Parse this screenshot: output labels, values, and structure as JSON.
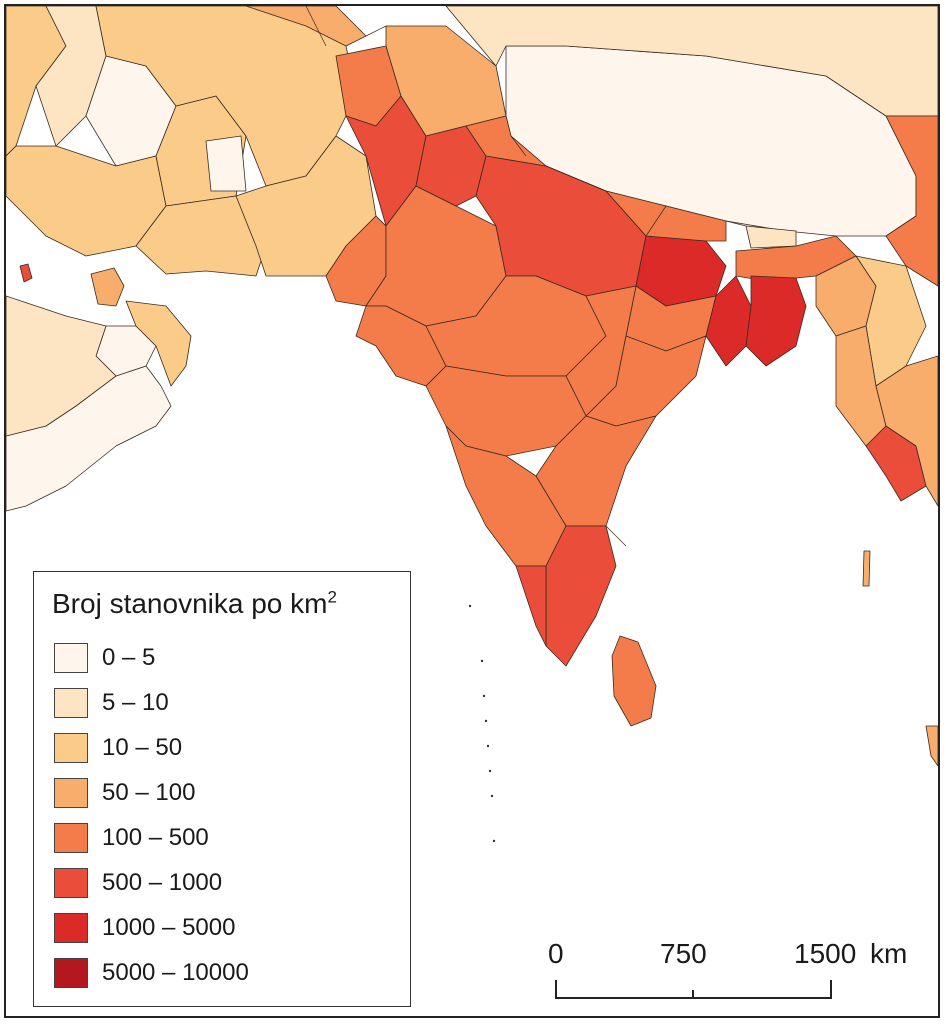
{
  "legend": {
    "title": "Broj stanovnika po km",
    "title_sup": "2",
    "classes": [
      {
        "label": "0 – 5",
        "color": "#fef6ec"
      },
      {
        "label": "5 – 10",
        "color": "#fde4c2"
      },
      {
        "label": "10 – 50",
        "color": "#fbcb8a"
      },
      {
        "label": "50 – 100",
        "color": "#f8ad6c"
      },
      {
        "label": "100 – 500",
        "color": "#f47c4b"
      },
      {
        "label": "500 – 1000",
        "color": "#ea4d3a"
      },
      {
        "label": "1000 – 5000",
        "color": "#db2a27"
      },
      {
        "label": "5000 – 10000",
        "color": "#b2181e"
      }
    ]
  },
  "scale": {
    "ticks": [
      "0",
      "750",
      "1500"
    ],
    "unit": "km"
  },
  "colors": {
    "sea": "#ffffff",
    "outline": "#3a2a1f"
  }
}
